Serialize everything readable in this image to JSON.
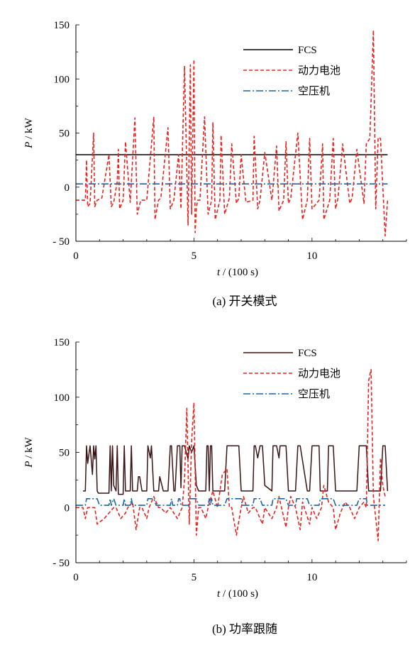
{
  "chart_data": [
    {
      "type": "line",
      "caption": "(a) 开关模式",
      "xlabel_var": "t",
      "xlabel_unit": " / (100 s)",
      "ylabel_var": "P",
      "ylabel_unit": " / kW",
      "xlim": [
        0,
        14
      ],
      "ylim": [
        -50,
        150
      ],
      "xticks": [
        0,
        5,
        10
      ],
      "yticks": [
        -50,
        0,
        50,
        100,
        150
      ],
      "ytick_labels": [
        "- 50",
        "0",
        "50",
        "100",
        "150"
      ],
      "legend_position": "top-right",
      "series": [
        {
          "name": "FCS",
          "color": "#000000",
          "style": "solid",
          "x": [
            0,
            13.2
          ],
          "y": [
            30,
            30
          ]
        },
        {
          "name": "动力电池",
          "color": "#e8231f",
          "style": "dashed",
          "x": [
            0,
            0.4,
            0.45,
            0.5,
            0.6,
            0.75,
            0.8,
            0.85,
            0.9,
            1.1,
            1.4,
            1.5,
            1.6,
            1.75,
            1.8,
            1.85,
            2.0,
            2.1,
            2.3,
            2.5,
            2.6,
            2.75,
            3.0,
            3.3,
            3.35,
            3.5,
            3.6,
            3.9,
            4.0,
            4.15,
            4.35,
            4.45,
            4.6,
            4.75,
            4.85,
            4.9,
            5.0,
            5.05,
            5.1,
            5.15,
            5.25,
            5.45,
            5.6,
            5.75,
            5.8,
            5.9,
            6.1,
            6.15,
            6.3,
            6.5,
            6.6,
            6.8,
            6.9,
            7.0,
            7.2,
            7.5,
            7.55,
            7.7,
            7.8,
            8.0,
            8.3,
            8.5,
            8.6,
            8.8,
            8.9,
            9.0,
            9.1,
            9.4,
            9.6,
            9.8,
            9.9,
            10.0,
            10.3,
            10.45,
            10.5,
            10.75,
            10.9,
            11.0,
            11.1,
            11.3,
            11.6,
            11.7,
            11.9,
            12.2,
            12.3,
            12.45,
            12.6,
            12.7,
            12.8,
            12.9,
            13.1,
            13.2
          ],
          "y": [
            -12,
            -12,
            25,
            -18,
            -15,
            50,
            -18,
            -15,
            -12,
            -10,
            30,
            -18,
            -14,
            5,
            35,
            -20,
            -12,
            42,
            -14,
            64,
            -25,
            -12,
            -12,
            65,
            -30,
            -12,
            -10,
            55,
            -20,
            -12,
            30,
            -20,
            112,
            -35,
            113,
            -25,
            118,
            -42,
            -20,
            -12,
            -12,
            65,
            -25,
            -12,
            60,
            -30,
            -12,
            48,
            -25,
            -10,
            40,
            -15,
            -10,
            30,
            -14,
            -12,
            47,
            -20,
            -12,
            32,
            -12,
            38,
            -22,
            -12,
            42,
            -15,
            -10,
            50,
            -30,
            -12,
            45,
            -20,
            -12,
            40,
            -30,
            -12,
            45,
            -20,
            -10,
            40,
            -15,
            -10,
            35,
            -15,
            40,
            45,
            145,
            -20,
            46,
            45,
            -45,
            -12
          ]
        },
        {
          "name": "空压机",
          "color": "#1c64a8",
          "style": "dashdot",
          "x": [
            0,
            13.2
          ],
          "y": [
            3,
            3
          ]
        }
      ]
    },
    {
      "type": "line",
      "caption": "(b) 功率跟随",
      "xlabel_var": "t",
      "xlabel_unit": " / (100 s)",
      "ylabel_var": "P",
      "ylabel_unit": " / kW",
      "xlim": [
        0,
        14
      ],
      "ylim": [
        -50,
        150
      ],
      "xticks": [
        0,
        5,
        10
      ],
      "yticks": [
        -50,
        0,
        50,
        100,
        150
      ],
      "ytick_labels": [
        "- 50",
        "0",
        "50",
        "100",
        "150"
      ],
      "legend_position": "top-right",
      "series": [
        {
          "name": "FCS",
          "color": "#3a1414",
          "style": "solid",
          "x": [
            0.3,
            0.4,
            0.45,
            0.5,
            0.6,
            0.7,
            0.75,
            0.8,
            0.85,
            0.9,
            0.95,
            1.0,
            1.4,
            1.45,
            1.5,
            1.55,
            1.6,
            1.7,
            1.75,
            1.8,
            2.0,
            2.05,
            2.1,
            2.2,
            2.3,
            2.35,
            2.4,
            2.6,
            2.65,
            2.7,
            2.8,
            3.0,
            3.05,
            3.15,
            3.2,
            3.3,
            3.5,
            3.55,
            3.7,
            3.9,
            4.0,
            4.05,
            4.15,
            4.2,
            4.3,
            4.4,
            4.45,
            4.5,
            4.6,
            4.75,
            4.8,
            4.9,
            5.0,
            5.1,
            5.2,
            5.5,
            5.55,
            5.6,
            5.65,
            5.7,
            5.75,
            5.8,
            6.0,
            6.3,
            6.4,
            6.5,
            6.9,
            7.0,
            7.05,
            7.3,
            7.5,
            7.55,
            7.6,
            7.7,
            7.8,
            7.9,
            8.0,
            8.3,
            8.35,
            8.5,
            8.6,
            8.65,
            8.9,
            9.0,
            9.3,
            9.4,
            9.5,
            9.8,
            9.9,
            10.0,
            10.3,
            10.35,
            10.5,
            10.65,
            10.7,
            10.9,
            11.0,
            11.3,
            11.5,
            11.6,
            11.9,
            12.0,
            12.3,
            12.4,
            12.9,
            13.0,
            13.1,
            13.2
          ],
          "y": [
            15,
            15,
            56,
            40,
            56,
            30,
            56,
            44,
            56,
            15,
            13,
            13,
            13,
            56,
            15,
            56,
            20,
            15,
            56,
            12,
            12,
            56,
            15,
            15,
            15,
            56,
            15,
            15,
            28,
            28,
            15,
            15,
            56,
            45,
            56,
            15,
            15,
            28,
            15,
            15,
            56,
            56,
            15,
            15,
            56,
            56,
            18,
            56,
            56,
            44,
            56,
            50,
            56,
            20,
            15,
            15,
            56,
            56,
            15,
            56,
            56,
            15,
            15,
            15,
            56,
            56,
            56,
            15,
            15,
            15,
            15,
            56,
            56,
            45,
            56,
            56,
            20,
            15,
            56,
            56,
            45,
            56,
            56,
            15,
            15,
            56,
            56,
            15,
            15,
            56,
            56,
            15,
            15,
            15,
            56,
            56,
            15,
            15,
            15,
            15,
            15,
            56,
            56,
            15,
            15,
            56,
            56,
            15
          ]
        },
        {
          "name": "动力电池",
          "color": "#e8231f",
          "style": "dashed",
          "x": [
            0,
            0.3,
            0.4,
            0.5,
            0.8,
            0.9,
            1.2,
            1.4,
            1.6,
            1.7,
            1.9,
            2.1,
            2.2,
            2.4,
            2.55,
            2.7,
            2.8,
            3.0,
            3.1,
            3.3,
            3.5,
            3.6,
            3.8,
            4.0,
            4.3,
            4.5,
            4.6,
            4.7,
            4.8,
            4.9,
            5.0,
            5.1,
            5.2,
            5.3,
            5.5,
            5.6,
            5.8,
            6.0,
            6.2,
            6.4,
            6.5,
            6.6,
            6.8,
            7.0,
            7.1,
            7.3,
            7.5,
            7.6,
            7.9,
            8.0,
            8.3,
            8.5,
            8.6,
            8.9,
            9.0,
            9.1,
            9.3,
            9.5,
            9.6,
            9.9,
            10.0,
            10.2,
            10.4,
            10.5,
            10.7,
            10.9,
            11.0,
            11.2,
            11.4,
            11.6,
            11.8,
            12.0,
            12.2,
            12.3,
            12.4,
            12.5,
            12.6,
            12.8,
            12.9,
            13.0,
            13.1
          ],
          "y": [
            0,
            0,
            -10,
            0,
            0,
            -15,
            -10,
            -5,
            0,
            0,
            -10,
            -5,
            0,
            5,
            -20,
            0,
            0,
            -10,
            0,
            10,
            0,
            0,
            -5,
            0,
            -10,
            0,
            25,
            90,
            -15,
            60,
            95,
            -25,
            0,
            0,
            -10,
            0,
            15,
            0,
            30,
            35,
            0,
            0,
            -25,
            0,
            10,
            -5,
            0,
            0,
            -15,
            0,
            -10,
            0,
            10,
            -18,
            0,
            10,
            0,
            -20,
            5,
            -15,
            0,
            -10,
            0,
            20,
            5,
            0,
            -20,
            -5,
            5,
            0,
            -10,
            0,
            5,
            0,
            115,
            125,
            10,
            -30,
            45,
            20,
            10
          ]
        },
        {
          "name": "空压机",
          "color": "#1c64a8",
          "style": "dashdot",
          "x": [
            0,
            0.3,
            0.4,
            0.45,
            0.9,
            1.0,
            1.4,
            1.45,
            1.5,
            1.6,
            1.7,
            1.8,
            2.0,
            2.05,
            2.1,
            2.3,
            2.35,
            2.4,
            3.0,
            3.05,
            3.3,
            3.4,
            4.0,
            4.05,
            4.1,
            4.3,
            4.35,
            4.4,
            4.45,
            4.8,
            4.85,
            5.1,
            5.2,
            5.6,
            5.65,
            5.7,
            5.75,
            5.8,
            6.3,
            6.4,
            6.5,
            7.0,
            7.05,
            7.5,
            7.55,
            7.8,
            7.9,
            8.3,
            8.35,
            8.9,
            9.0,
            9.3,
            9.35,
            9.8,
            9.9,
            10.3,
            10.35,
            10.9,
            11.0,
            11.9,
            12.0,
            12.3,
            12.35,
            13.0,
            13.1
          ],
          "y": [
            2,
            2,
            2,
            8,
            8,
            2,
            2,
            8,
            2,
            8,
            2,
            2,
            2,
            8,
            2,
            2,
            8,
            2,
            2,
            8,
            8,
            2,
            2,
            8,
            2,
            2,
            8,
            8,
            2,
            2,
            8,
            8,
            2,
            2,
            8,
            2,
            8,
            2,
            2,
            8,
            8,
            8,
            2,
            2,
            8,
            8,
            2,
            2,
            8,
            8,
            2,
            2,
            8,
            8,
            2,
            2,
            8,
            8,
            2,
            2,
            8,
            8,
            2,
            2,
            2
          ]
        }
      ]
    }
  ]
}
